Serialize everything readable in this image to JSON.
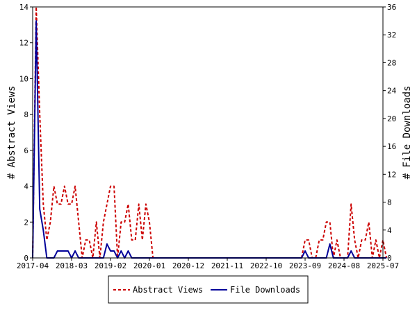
{
  "chart_data": {
    "type": "line",
    "ylabel_left": "# Abstract Views",
    "ylabel_right": "# File Downloads",
    "x_ticks": [
      "2017-04",
      "2018-03",
      "2019-02",
      "2020-01",
      "2020-12",
      "2021-11",
      "2022-10",
      "2023-09",
      "2024-08",
      "2025-07"
    ],
    "y_left_ticks": [
      0,
      2,
      4,
      6,
      8,
      10,
      12,
      14
    ],
    "y_right_ticks": [
      0,
      4,
      8,
      12,
      16,
      20,
      24,
      28,
      32,
      36
    ],
    "ylim_left": [
      0,
      14
    ],
    "ylim_right": [
      0,
      36
    ],
    "xlim": [
      "2017-04",
      "2025-07"
    ],
    "legend_position": "bottom-center",
    "grid": false,
    "series": [
      {
        "name": "Abstract Views",
        "axis": "left",
        "color": "#cc0000",
        "line_style": "dashed",
        "points": [
          [
            "2017-04",
            0
          ],
          [
            "2017-05",
            14
          ],
          [
            "2017-06",
            8
          ],
          [
            "2017-07",
            3
          ],
          [
            "2017-08",
            1
          ],
          [
            "2017-09",
            2
          ],
          [
            "2017-10",
            4
          ],
          [
            "2017-11",
            3
          ],
          [
            "2017-12",
            3
          ],
          [
            "2018-01",
            4
          ],
          [
            "2018-02",
            3
          ],
          [
            "2018-03",
            3
          ],
          [
            "2018-04",
            4
          ],
          [
            "2018-05",
            2
          ],
          [
            "2018-06",
            0
          ],
          [
            "2018-07",
            1
          ],
          [
            "2018-08",
            1
          ],
          [
            "2018-09",
            0
          ],
          [
            "2018-10",
            2
          ],
          [
            "2018-11",
            0
          ],
          [
            "2018-12",
            2
          ],
          [
            "2019-01",
            3
          ],
          [
            "2019-02",
            4
          ],
          [
            "2019-03",
            4
          ],
          [
            "2019-04",
            0
          ],
          [
            "2019-05",
            2
          ],
          [
            "2019-06",
            2
          ],
          [
            "2019-07",
            3
          ],
          [
            "2019-08",
            1
          ],
          [
            "2019-09",
            1
          ],
          [
            "2019-10",
            3
          ],
          [
            "2019-11",
            1
          ],
          [
            "2019-12",
            3
          ],
          [
            "2020-01",
            2
          ],
          [
            "2020-02",
            0
          ],
          [
            "2023-08",
            0
          ],
          [
            "2023-09",
            1
          ],
          [
            "2023-10",
            1
          ],
          [
            "2023-11",
            0
          ],
          [
            "2023-12",
            0
          ],
          [
            "2024-01",
            1
          ],
          [
            "2024-02",
            1
          ],
          [
            "2024-03",
            2
          ],
          [
            "2024-04",
            2
          ],
          [
            "2024-05",
            0
          ],
          [
            "2024-06",
            1
          ],
          [
            "2024-07",
            0
          ],
          [
            "2024-08",
            0
          ],
          [
            "2024-09",
            0
          ],
          [
            "2024-10",
            3
          ],
          [
            "2024-11",
            1
          ],
          [
            "2024-12",
            0
          ],
          [
            "2025-01",
            1
          ],
          [
            "2025-02",
            1
          ],
          [
            "2025-03",
            2
          ],
          [
            "2025-04",
            0
          ],
          [
            "2025-05",
            1
          ],
          [
            "2025-06",
            0
          ],
          [
            "2025-07",
            1
          ],
          [
            "2025-08",
            0
          ]
        ]
      },
      {
        "name": "File Downloads",
        "axis": "right",
        "color": "#000099",
        "line_style": "solid",
        "points": [
          [
            "2017-04",
            0
          ],
          [
            "2017-05",
            34
          ],
          [
            "2017-06",
            7
          ],
          [
            "2017-07",
            4
          ],
          [
            "2017-08",
            0
          ],
          [
            "2017-09",
            0
          ],
          [
            "2017-10",
            0
          ],
          [
            "2017-11",
            1
          ],
          [
            "2017-12",
            1
          ],
          [
            "2018-01",
            1
          ],
          [
            "2018-02",
            1
          ],
          [
            "2018-03",
            0
          ],
          [
            "2018-04",
            1
          ],
          [
            "2018-05",
            0
          ],
          [
            "2018-06",
            0
          ],
          [
            "2018-07",
            0
          ],
          [
            "2018-08",
            0
          ],
          [
            "2018-09",
            0
          ],
          [
            "2018-10",
            0
          ],
          [
            "2018-11",
            0
          ],
          [
            "2018-12",
            0
          ],
          [
            "2019-01",
            2
          ],
          [
            "2019-02",
            1
          ],
          [
            "2019-03",
            1
          ],
          [
            "2019-04",
            0
          ],
          [
            "2019-05",
            1
          ],
          [
            "2019-06",
            0
          ],
          [
            "2019-07",
            1
          ],
          [
            "2019-08",
            0
          ],
          [
            "2019-09",
            0
          ],
          [
            "2019-10",
            0
          ],
          [
            "2023-08",
            0
          ],
          [
            "2023-09",
            1
          ],
          [
            "2023-10",
            0
          ],
          [
            "2024-01",
            0
          ],
          [
            "2024-02",
            0
          ],
          [
            "2024-03",
            0
          ],
          [
            "2024-04",
            2
          ],
          [
            "2024-05",
            0
          ],
          [
            "2024-09",
            0
          ],
          [
            "2024-10",
            1
          ],
          [
            "2024-11",
            0
          ],
          [
            "2025-08",
            0
          ]
        ]
      }
    ]
  }
}
